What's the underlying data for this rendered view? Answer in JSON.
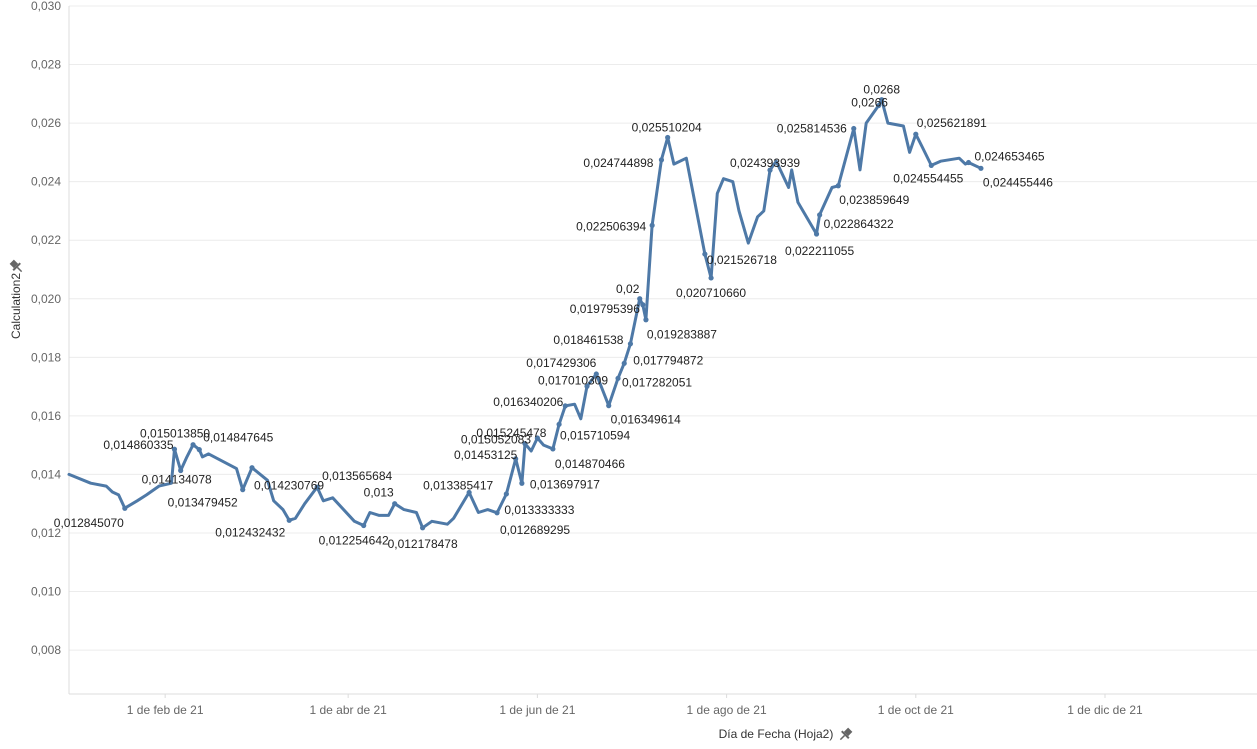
{
  "chart_data": {
    "type": "line",
    "xlabel": "Día de Fecha (Hoja2)",
    "ylabel": "Calculation2",
    "ylim": [
      0.0065,
      0.03
    ],
    "xlim": [
      "2021-01-01",
      "2022-01-19"
    ],
    "grid": true,
    "series_color": "#4e79a7",
    "y_ticks": [
      {
        "value": 0.008,
        "label": "0,008"
      },
      {
        "value": 0.01,
        "label": "0,010"
      },
      {
        "value": 0.012,
        "label": "0,012"
      },
      {
        "value": 0.014,
        "label": "0,014"
      },
      {
        "value": 0.016,
        "label": "0,016"
      },
      {
        "value": 0.018,
        "label": "0,018"
      },
      {
        "value": 0.02,
        "label": "0,020"
      },
      {
        "value": 0.022,
        "label": "0,022"
      },
      {
        "value": 0.024,
        "label": "0,024"
      },
      {
        "value": 0.026,
        "label": "0,026"
      },
      {
        "value": 0.028,
        "label": "0,028"
      },
      {
        "value": 0.03,
        "label": "0,030"
      }
    ],
    "x_ticks": [
      {
        "date": "2021-02-01",
        "label": "1 de feb de 21"
      },
      {
        "date": "2021-04-01",
        "label": "1 de abr de 21"
      },
      {
        "date": "2021-06-01",
        "label": "1 de jun de 21"
      },
      {
        "date": "2021-08-01",
        "label": "1 de ago de 21"
      },
      {
        "date": "2021-10-01",
        "label": "1 de oct de 21"
      },
      {
        "date": "2021-12-01",
        "label": "1 de dic de 21"
      }
    ],
    "points": [
      {
        "date": "2021-01-01",
        "y": 0.014
      },
      {
        "date": "2021-01-08",
        "y": 0.0137
      },
      {
        "date": "2021-01-13",
        "y": 0.0136
      },
      {
        "date": "2021-01-15",
        "y": 0.0134
      },
      {
        "date": "2021-01-17",
        "y": 0.0133
      },
      {
        "date": "2021-01-19",
        "y": 0.01284507,
        "label": "0,012845070"
      },
      {
        "date": "2021-01-23",
        "y": 0.0131
      },
      {
        "date": "2021-01-26",
        "y": 0.0133
      },
      {
        "date": "2021-01-30",
        "y": 0.0136
      },
      {
        "date": "2021-02-03",
        "y": 0.0137
      },
      {
        "date": "2021-02-04",
        "y": 0.014860335,
        "label": "0,014860335"
      },
      {
        "date": "2021-02-06",
        "y": 0.014134078,
        "label": "0,014134078"
      },
      {
        "date": "2021-02-08",
        "y": 0.0146
      },
      {
        "date": "2021-02-10",
        "y": 0.01501385,
        "label": "0,015013850"
      },
      {
        "date": "2021-02-12",
        "y": 0.014847645,
        "label": "0,014847645"
      },
      {
        "date": "2021-02-13",
        "y": 0.0146
      },
      {
        "date": "2021-02-15",
        "y": 0.0147
      },
      {
        "date": "2021-02-24",
        "y": 0.0142
      },
      {
        "date": "2021-02-26",
        "y": 0.013479452,
        "label": "0,013479452"
      },
      {
        "date": "2021-03-01",
        "y": 0.014230769,
        "label": "0,014230769"
      },
      {
        "date": "2021-03-06",
        "y": 0.0138
      },
      {
        "date": "2021-03-08",
        "y": 0.0131
      },
      {
        "date": "2021-03-11",
        "y": 0.0128
      },
      {
        "date": "2021-03-13",
        "y": 0.012432432,
        "label": "0,012432432"
      },
      {
        "date": "2021-03-15",
        "y": 0.0125
      },
      {
        "date": "2021-03-18",
        "y": 0.013
      },
      {
        "date": "2021-03-22",
        "y": 0.013565684,
        "label": "0,013565684"
      },
      {
        "date": "2021-03-24",
        "y": 0.0131
      },
      {
        "date": "2021-03-27",
        "y": 0.0132
      },
      {
        "date": "2021-04-03",
        "y": 0.0124
      },
      {
        "date": "2021-04-06",
        "y": 0.012254642,
        "label": "0,012254642"
      },
      {
        "date": "2021-04-08",
        "y": 0.0127
      },
      {
        "date": "2021-04-11",
        "y": 0.0126
      },
      {
        "date": "2021-04-14",
        "y": 0.0126
      },
      {
        "date": "2021-04-16",
        "y": 0.013,
        "label": "0,013"
      },
      {
        "date": "2021-04-19",
        "y": 0.0128
      },
      {
        "date": "2021-04-23",
        "y": 0.0127
      },
      {
        "date": "2021-04-25",
        "y": 0.012178478,
        "label": "0,012178478"
      },
      {
        "date": "2021-04-28",
        "y": 0.0124
      },
      {
        "date": "2021-05-03",
        "y": 0.0123
      },
      {
        "date": "2021-05-05",
        "y": 0.0125
      },
      {
        "date": "2021-05-10",
        "y": 0.013385417,
        "label": "0,013385417"
      },
      {
        "date": "2021-05-13",
        "y": 0.0127
      },
      {
        "date": "2021-05-16",
        "y": 0.0128
      },
      {
        "date": "2021-05-19",
        "y": 0.012689295,
        "label": "0,012689295"
      },
      {
        "date": "2021-05-22",
        "y": 0.013333333,
        "label": "0,013333333"
      },
      {
        "date": "2021-05-25",
        "y": 0.01453125,
        "label": "0,01453125"
      },
      {
        "date": "2021-05-27",
        "y": 0.013697917,
        "label": "0,013697917"
      },
      {
        "date": "2021-05-28",
        "y": 0.015052083,
        "label": "0,015052083"
      },
      {
        "date": "2021-05-30",
        "y": 0.0148
      },
      {
        "date": "2021-06-01",
        "y": 0.015245478,
        "label": "0,015245478"
      },
      {
        "date": "2021-06-03",
        "y": 0.015
      },
      {
        "date": "2021-06-06",
        "y": 0.014870466,
        "label": "0,014870466"
      },
      {
        "date": "2021-06-08",
        "y": 0.015710594,
        "label": "0,015710594"
      },
      {
        "date": "2021-06-10",
        "y": 0.016340206,
        "label": "0,016340206"
      },
      {
        "date": "2021-06-13",
        "y": 0.0164
      },
      {
        "date": "2021-06-15",
        "y": 0.0159
      },
      {
        "date": "2021-06-17",
        "y": 0.017010309,
        "label": "0,017010309"
      },
      {
        "date": "2021-06-20",
        "y": 0.017429306,
        "label": "0,017429306"
      },
      {
        "date": "2021-06-24",
        "y": 0.016349614,
        "label": "0,016349614"
      },
      {
        "date": "2021-06-27",
        "y": 0.017282051,
        "label": "0,017282051"
      },
      {
        "date": "2021-06-29",
        "y": 0.017794872,
        "label": "0,017794872"
      },
      {
        "date": "2021-07-01",
        "y": 0.018461538,
        "label": "0,018461538"
      },
      {
        "date": "2021-07-04",
        "y": 0.02,
        "label": "0,02"
      },
      {
        "date": "2021-07-05",
        "y": 0.019795396,
        "label": "0,019795396"
      },
      {
        "date": "2021-07-06",
        "y": 0.019283887,
        "label": "0,019283887"
      },
      {
        "date": "2021-07-08",
        "y": 0.022506394,
        "label": "0,022506394"
      },
      {
        "date": "2021-07-11",
        "y": 0.024744898,
        "label": "0,024744898"
      },
      {
        "date": "2021-07-13",
        "y": 0.025510204,
        "label": "0,025510204"
      },
      {
        "date": "2021-07-15",
        "y": 0.0246
      },
      {
        "date": "2021-07-19",
        "y": 0.0248
      },
      {
        "date": "2021-07-25",
        "y": 0.021526718,
        "label": "0,021526718"
      },
      {
        "date": "2021-07-27",
        "y": 0.02071066,
        "label": "0,020710660"
      },
      {
        "date": "2021-07-29",
        "y": 0.0236
      },
      {
        "date": "2021-07-31",
        "y": 0.0241
      },
      {
        "date": "2021-08-03",
        "y": 0.024
      },
      {
        "date": "2021-08-05",
        "y": 0.023
      },
      {
        "date": "2021-08-08",
        "y": 0.0219
      },
      {
        "date": "2021-08-11",
        "y": 0.0228
      },
      {
        "date": "2021-08-13",
        "y": 0.023
      },
      {
        "date": "2021-08-15",
        "y": 0.024393939,
        "label": "0,024393939"
      },
      {
        "date": "2021-08-17",
        "y": 0.0247
      },
      {
        "date": "2021-08-21",
        "y": 0.0238
      },
      {
        "date": "2021-08-22",
        "y": 0.0244
      },
      {
        "date": "2021-08-24",
        "y": 0.0233
      },
      {
        "date": "2021-08-30",
        "y": 0.022211055,
        "label": "0,022211055"
      },
      {
        "date": "2021-08-31",
        "y": 0.022864322,
        "label": "0,022864322"
      },
      {
        "date": "2021-09-04",
        "y": 0.0238
      },
      {
        "date": "2021-09-06",
        "y": 0.023859649,
        "label": "0,023859649"
      },
      {
        "date": "2021-09-11",
        "y": 0.025814536,
        "label": "0,025814536"
      },
      {
        "date": "2021-09-13",
        "y": 0.0244
      },
      {
        "date": "2021-09-15",
        "y": 0.026
      },
      {
        "date": "2021-09-19",
        "y": 0.0266,
        "label": "0,0266"
      },
      {
        "date": "2021-09-20",
        "y": 0.0268,
        "label": "0,0268"
      },
      {
        "date": "2021-09-22",
        "y": 0.026
      },
      {
        "date": "2021-09-27",
        "y": 0.0259
      },
      {
        "date": "2021-09-29",
        "y": 0.025
      },
      {
        "date": "2021-10-01",
        "y": 0.025621891,
        "label": "0,025621891"
      },
      {
        "date": "2021-10-03",
        "y": 0.0252
      },
      {
        "date": "2021-10-06",
        "y": 0.024554455,
        "label": "0,024554455"
      },
      {
        "date": "2021-10-09",
        "y": 0.0247
      },
      {
        "date": "2021-10-15",
        "y": 0.0248
      },
      {
        "date": "2021-10-17",
        "y": 0.0246
      },
      {
        "date": "2021-10-18",
        "y": 0.024653465,
        "label": "0,024653465"
      },
      {
        "date": "2021-10-22",
        "y": 0.024455446,
        "label": "0,024455446"
      }
    ]
  }
}
